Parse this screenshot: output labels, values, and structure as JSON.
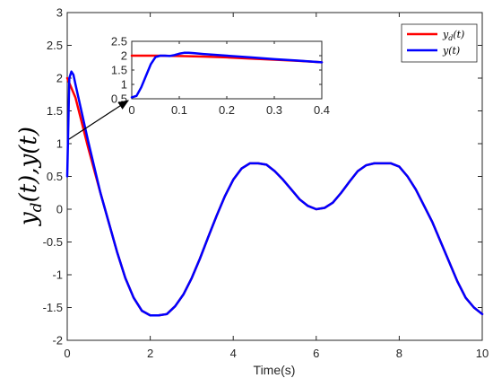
{
  "chart_data": [
    {
      "type": "line",
      "xlabel": "Time(s)",
      "ylabel": "y_d(t),y(t)",
      "xlim": [
        0,
        10
      ],
      "ylim": [
        -2,
        3
      ],
      "xticks": [
        0,
        2,
        4,
        6,
        8,
        10
      ],
      "yticks": [
        -2,
        -1.5,
        -1,
        -0.5,
        0,
        0.5,
        1,
        1.5,
        2,
        2.5,
        3
      ],
      "ytick_labels": [
        "-2",
        "-1.5",
        "-1",
        "-0.5",
        "0",
        "0.5",
        "1",
        "1.5",
        "2",
        "2.5",
        "3"
      ],
      "grid": false,
      "legend_position": "top-right",
      "series": [
        {
          "name": "y_d(t)",
          "color": "#ff0000",
          "x": [
            0,
            0.2,
            0.5,
            0.8,
            1.0,
            1.2,
            1.4,
            1.6,
            1.8,
            2.0,
            2.2,
            2.4,
            2.6,
            2.8,
            3.0,
            3.2,
            3.4,
            3.6,
            3.8,
            4.0,
            4.2,
            4.4,
            4.6,
            4.8,
            5.0,
            5.2,
            5.4,
            5.6,
            5.8,
            6.0,
            6.2,
            6.4,
            6.6,
            6.8,
            7.0,
            7.2,
            7.4,
            7.6,
            7.8,
            8.0,
            8.2,
            8.4,
            8.6,
            8.8,
            9.0,
            9.2,
            9.4,
            9.6,
            9.8,
            10.0
          ],
          "y": [
            2.0,
            1.7,
            0.95,
            0.25,
            -0.2,
            -0.65,
            -1.05,
            -1.35,
            -1.55,
            -1.62,
            -1.62,
            -1.6,
            -1.48,
            -1.3,
            -1.05,
            -0.75,
            -0.42,
            -0.1,
            0.2,
            0.45,
            0.62,
            0.7,
            0.7,
            0.68,
            0.58,
            0.45,
            0.3,
            0.15,
            0.05,
            0.0,
            0.02,
            0.1,
            0.25,
            0.42,
            0.58,
            0.67,
            0.7,
            0.7,
            0.7,
            0.65,
            0.5,
            0.3,
            0.05,
            -0.2,
            -0.5,
            -0.8,
            -1.1,
            -1.35,
            -1.5,
            -1.6
          ]
        },
        {
          "name": "y(t)",
          "color": "#0000ff",
          "x": [
            0,
            0.05,
            0.1,
            0.15,
            0.2,
            0.5,
            0.8,
            1.0,
            1.2,
            1.4,
            1.6,
            1.8,
            2.0,
            2.2,
            2.4,
            2.6,
            2.8,
            3.0,
            3.2,
            3.4,
            3.6,
            3.8,
            4.0,
            4.2,
            4.4,
            4.6,
            4.8,
            5.0,
            5.2,
            5.4,
            5.6,
            5.8,
            6.0,
            6.2,
            6.4,
            6.6,
            6.8,
            7.0,
            7.2,
            7.4,
            7.6,
            7.8,
            8.0,
            8.2,
            8.4,
            8.6,
            8.8,
            9.0,
            9.2,
            9.4,
            9.6,
            9.8,
            10.0
          ],
          "y": [
            0.5,
            2.0,
            2.1,
            2.05,
            1.9,
            1.05,
            0.25,
            -0.2,
            -0.65,
            -1.05,
            -1.35,
            -1.55,
            -1.62,
            -1.62,
            -1.6,
            -1.48,
            -1.3,
            -1.05,
            -0.75,
            -0.42,
            -0.1,
            0.2,
            0.45,
            0.62,
            0.7,
            0.7,
            0.68,
            0.58,
            0.45,
            0.3,
            0.15,
            0.05,
            0.0,
            0.02,
            0.1,
            0.25,
            0.42,
            0.58,
            0.67,
            0.7,
            0.7,
            0.7,
            0.65,
            0.5,
            0.3,
            0.05,
            -0.2,
            -0.5,
            -0.8,
            -1.1,
            -1.35,
            -1.5,
            -1.6
          ]
        }
      ]
    },
    {
      "type": "line",
      "inset": true,
      "xlim": [
        0,
        0.4
      ],
      "ylim": [
        0.5,
        2.5
      ],
      "xticks": [
        0,
        0.1,
        0.2,
        0.3,
        0.4
      ],
      "xtick_labels": [
        "0",
        "0.1",
        "0.2",
        "0.3",
        "0.4"
      ],
      "yticks": [
        0.5,
        1,
        1.5,
        2,
        2.5
      ],
      "ytick_labels": [
        "0.5",
        "1",
        "1.5",
        "2",
        "2.5"
      ],
      "series": [
        {
          "name": "y_d(t)",
          "color": "#ff0000",
          "x": [
            0,
            0.05,
            0.1,
            0.15,
            0.2,
            0.25,
            0.3,
            0.35,
            0.4
          ],
          "y": [
            2.0,
            2.0,
            1.99,
            1.97,
            1.94,
            1.9,
            1.86,
            1.82,
            1.77
          ]
        },
        {
          "name": "y(t)",
          "color": "#0000ff",
          "x": [
            0,
            0.01,
            0.02,
            0.03,
            0.04,
            0.05,
            0.06,
            0.07,
            0.08,
            0.09,
            0.1,
            0.11,
            0.12,
            0.13,
            0.15,
            0.2,
            0.25,
            0.3,
            0.35,
            0.4
          ],
          "y": [
            0.55,
            0.6,
            0.9,
            1.3,
            1.7,
            1.95,
            2.0,
            2.0,
            1.99,
            2.02,
            2.07,
            2.1,
            2.1,
            2.09,
            2.06,
            2.0,
            1.94,
            1.88,
            1.83,
            1.77
          ]
        }
      ]
    }
  ],
  "legend": {
    "items": [
      {
        "label_main": "y",
        "label_sub": "d",
        "label_rest": "(t)",
        "color": "#ff0000"
      },
      {
        "label_main": "y(t)",
        "label_sub": "",
        "label_rest": "",
        "color": "#0000ff"
      }
    ]
  },
  "ylabel_parts": {
    "y1": "y",
    "sub": "d",
    "rest": "(t),y(t)"
  }
}
